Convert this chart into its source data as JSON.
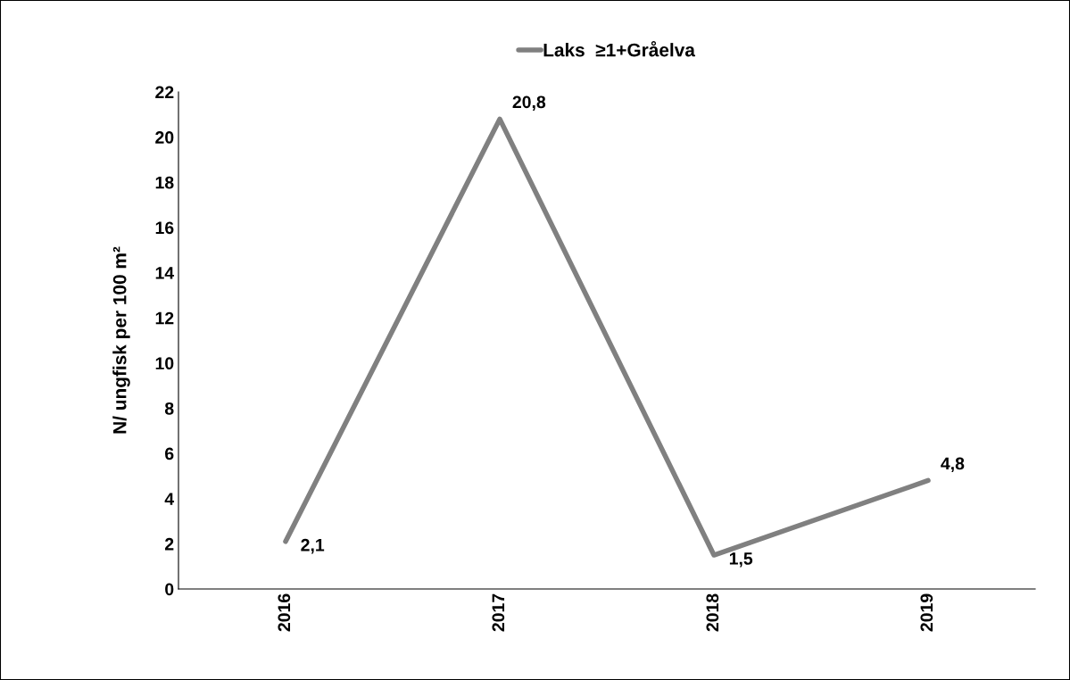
{
  "chart_data": {
    "type": "line",
    "categories": [
      "2016",
      "2017",
      "2018",
      "2019"
    ],
    "series": [
      {
        "name": "Laks  ≥1+Gråelva",
        "color": "#808080",
        "values": [
          2.1,
          20.8,
          1.5,
          4.8
        ],
        "value_labels": [
          "2,1",
          "20,8",
          "1,5",
          "4,8"
        ]
      }
    ],
    "ylabel": "N/ ungfisk per 100 m²",
    "ylim": [
      0,
      22
    ],
    "yticks": [
      0,
      2,
      4,
      6,
      8,
      10,
      12,
      14,
      16,
      18,
      20,
      22
    ],
    "grid": false,
    "legend": "top",
    "marker": "none",
    "line_style": "solid"
  }
}
